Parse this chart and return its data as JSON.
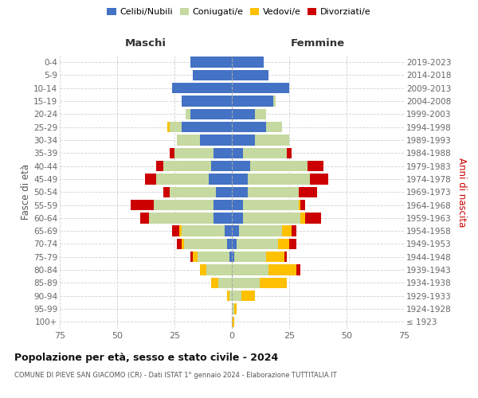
{
  "age_groups": [
    "100+",
    "95-99",
    "90-94",
    "85-89",
    "80-84",
    "75-79",
    "70-74",
    "65-69",
    "60-64",
    "55-59",
    "50-54",
    "45-49",
    "40-44",
    "35-39",
    "30-34",
    "25-29",
    "20-24",
    "15-19",
    "10-14",
    "5-9",
    "0-4"
  ],
  "birth_years": [
    "≤ 1923",
    "1924-1928",
    "1929-1933",
    "1934-1938",
    "1939-1943",
    "1944-1948",
    "1949-1953",
    "1954-1958",
    "1959-1963",
    "1964-1968",
    "1969-1973",
    "1974-1978",
    "1979-1983",
    "1984-1988",
    "1989-1993",
    "1994-1998",
    "1999-2003",
    "2004-2008",
    "2009-2013",
    "2014-2018",
    "2019-2023"
  ],
  "maschi": {
    "celibe": [
      0,
      0,
      0,
      0,
      0,
      1,
      2,
      3,
      8,
      8,
      7,
      10,
      9,
      8,
      14,
      22,
      18,
      22,
      26,
      17,
      18
    ],
    "coniugato": [
      0,
      0,
      1,
      6,
      11,
      14,
      19,
      19,
      28,
      26,
      20,
      23,
      21,
      17,
      10,
      5,
      2,
      0,
      0,
      0,
      0
    ],
    "vedovo": [
      0,
      0,
      1,
      3,
      3,
      2,
      1,
      1,
      0,
      0,
      0,
      0,
      0,
      0,
      0,
      1,
      0,
      0,
      0,
      0,
      0
    ],
    "divorziato": [
      0,
      0,
      0,
      0,
      0,
      1,
      2,
      3,
      4,
      10,
      3,
      5,
      3,
      2,
      0,
      0,
      0,
      0,
      0,
      0,
      0
    ]
  },
  "femmine": {
    "nubile": [
      0,
      0,
      0,
      0,
      0,
      1,
      2,
      3,
      5,
      5,
      7,
      7,
      8,
      5,
      10,
      15,
      10,
      18,
      25,
      16,
      14
    ],
    "coniugata": [
      0,
      1,
      4,
      12,
      16,
      14,
      18,
      19,
      25,
      24,
      22,
      27,
      25,
      19,
      15,
      7,
      5,
      1,
      0,
      0,
      0
    ],
    "vedova": [
      1,
      1,
      6,
      12,
      12,
      8,
      5,
      4,
      2,
      1,
      0,
      0,
      0,
      0,
      0,
      0,
      0,
      0,
      0,
      0,
      0
    ],
    "divorziata": [
      0,
      0,
      0,
      0,
      2,
      1,
      3,
      2,
      7,
      2,
      8,
      8,
      7,
      2,
      0,
      0,
      0,
      0,
      0,
      0,
      0
    ]
  },
  "colors": {
    "celibe": "#4472c4",
    "coniugato": "#c5d9a0",
    "vedovo": "#ffc000",
    "divorziato": "#cc0000"
  },
  "xlim": 75,
  "title": "Popolazione per età, sesso e stato civile - 2024",
  "subtitle": "COMUNE DI PIEVE SAN GIACOMO (CR) - Dati ISTAT 1° gennaio 2024 - Elaborazione TUTTITALIA.IT",
  "ylabel_left": "Fasce di età",
  "ylabel_right": "Anni di nascita",
  "xlabel_left": "Maschi",
  "xlabel_right": "Femmine",
  "bg_color": "#ffffff",
  "grid_color": "#d0d0d0",
  "legend_labels": [
    "Celibi/Nubili",
    "Coniugati/e",
    "Vedovi/e",
    "Divorziati/e"
  ]
}
